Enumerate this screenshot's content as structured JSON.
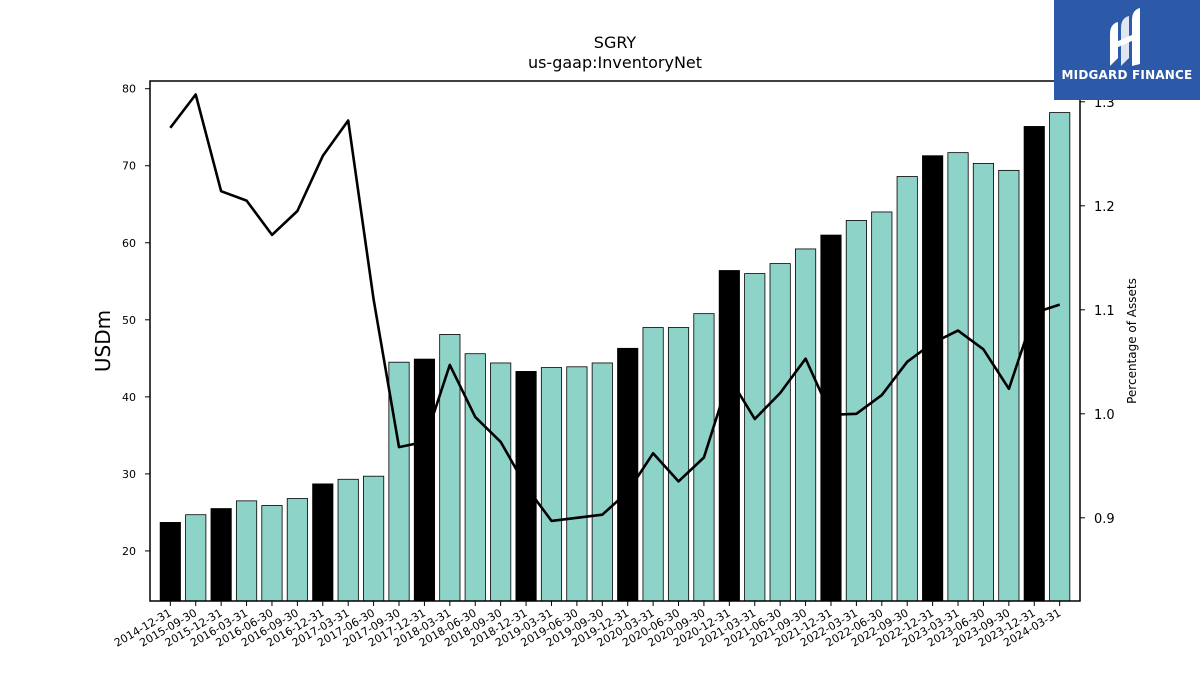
{
  "chart_data": {
    "type": "bar",
    "title": "SGRY",
    "subtitle": "us-gaap:InventoryNet",
    "ylabel": "USDm",
    "y2label": "Percentage of Assets",
    "ylim": [
      13.5,
      81
    ],
    "y2lim": [
      0.82,
      1.32
    ],
    "yticks": [
      20,
      30,
      40,
      50,
      60,
      70,
      80
    ],
    "y2ticks": [
      0.9,
      1.0,
      1.1,
      1.2,
      1.3
    ],
    "categories": [
      "2014-12-31",
      "2015-09-30",
      "2015-12-31",
      "2016-03-31",
      "2016-06-30",
      "2016-09-30",
      "2016-12-31",
      "2017-03-31",
      "2017-06-30",
      "2017-09-30",
      "2017-12-31",
      "2018-03-31",
      "2018-06-30",
      "2018-09-30",
      "2018-12-31",
      "2019-03-31",
      "2019-06-30",
      "2019-09-30",
      "2019-12-31",
      "2020-03-31",
      "2020-06-30",
      "2020-09-30",
      "2020-12-31",
      "2021-03-31",
      "2021-06-30",
      "2021-09-30",
      "2021-12-31",
      "2022-03-31",
      "2022-06-30",
      "2022-09-30",
      "2022-12-31",
      "2023-03-31",
      "2023-06-30",
      "2023-09-30",
      "2023-12-31",
      "2024-03-31"
    ],
    "series": [
      {
        "type": "bar",
        "axis": "left",
        "values": [
          23.7,
          24.7,
          25.5,
          26.5,
          25.9,
          26.8,
          28.7,
          29.3,
          29.7,
          44.5,
          44.9,
          48.1,
          45.6,
          44.4,
          43.3,
          43.8,
          43.9,
          44.4,
          46.3,
          49.0,
          49.0,
          50.8,
          56.4,
          56.0,
          57.3,
          59.2,
          61.0,
          62.9,
          64.0,
          68.6,
          71.3,
          71.7,
          70.3,
          69.4,
          75.1,
          76.9
        ],
        "colors": {
          "annual": "#000000",
          "quarterly": "#8dd3c7"
        }
      },
      {
        "type": "line",
        "axis": "right",
        "color": "#000000",
        "values": [
          1.275,
          1.307,
          1.214,
          1.205,
          1.172,
          1.195,
          1.248,
          1.282,
          1.11,
          0.968,
          0.973,
          1.047,
          0.997,
          0.973,
          0.93,
          0.897,
          0.9,
          0.903,
          0.925,
          0.962,
          0.935,
          0.958,
          1.035,
          0.995,
          1.02,
          1.053,
          0.999,
          1.0,
          1.018,
          1.05,
          1.068,
          1.08,
          1.062,
          1.024,
          1.097,
          1.105
        ]
      }
    ],
    "annual_indices": [
      0,
      2,
      6,
      10,
      14,
      18,
      22,
      26,
      30,
      34
    ]
  },
  "logo": {
    "text": "MIDGARD FINANCE",
    "bg_color": "#2c5aa8"
  }
}
